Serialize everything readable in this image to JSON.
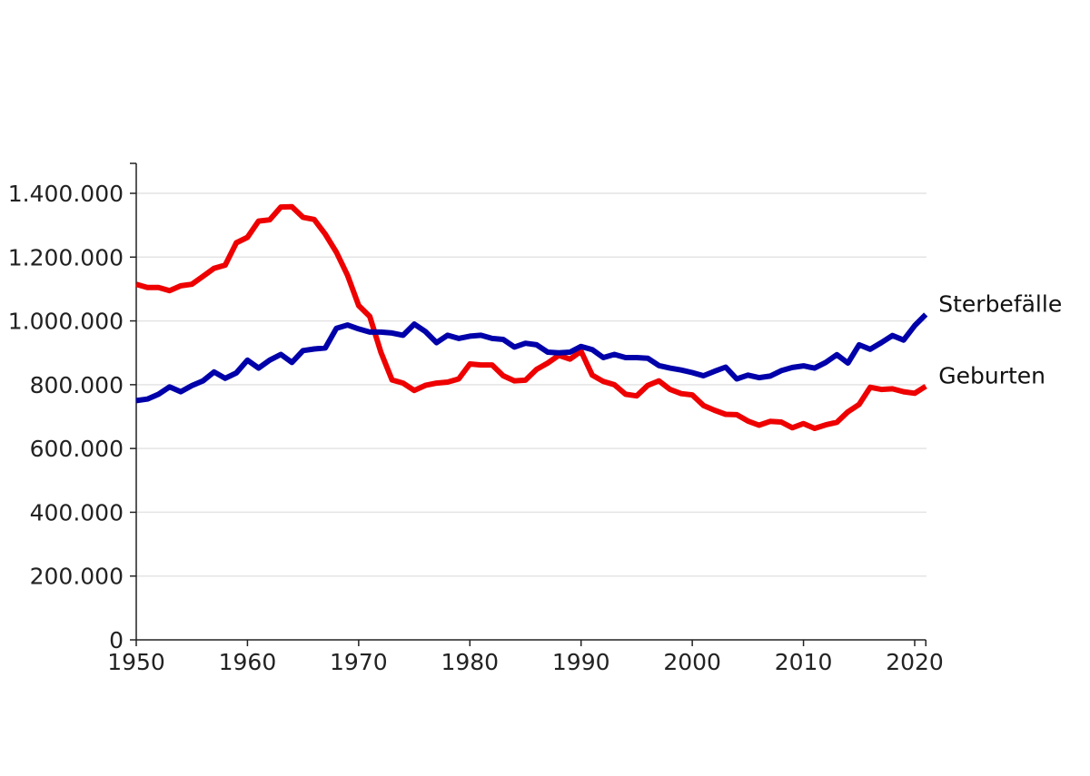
{
  "chart_data": {
    "type": "line",
    "title": "",
    "xlabel": "",
    "ylabel": "",
    "xlim": [
      1950,
      2021
    ],
    "ylim": [
      0,
      1500000
    ],
    "grid": true,
    "x": [
      1950,
      1951,
      1952,
      1953,
      1954,
      1955,
      1956,
      1957,
      1958,
      1959,
      1960,
      1961,
      1962,
      1963,
      1964,
      1965,
      1966,
      1967,
      1968,
      1969,
      1970,
      1971,
      1972,
      1973,
      1974,
      1975,
      1976,
      1977,
      1978,
      1979,
      1980,
      1981,
      1982,
      1983,
      1984,
      1985,
      1986,
      1987,
      1988,
      1989,
      1990,
      1991,
      1992,
      1993,
      1994,
      1995,
      1996,
      1997,
      1998,
      1999,
      2000,
      2001,
      2002,
      2003,
      2004,
      2005,
      2006,
      2007,
      2008,
      2009,
      2010,
      2011,
      2012,
      2013,
      2014,
      2015,
      2016,
      2017,
      2018,
      2019,
      2020,
      2021
    ],
    "y_ticks": [
      {
        "value": 0,
        "label": "0"
      },
      {
        "value": 200000,
        "label": "200.000"
      },
      {
        "value": 400000,
        "label": "400.000"
      },
      {
        "value": 600000,
        "label": "600.000"
      },
      {
        "value": 800000,
        "label": "800.000"
      },
      {
        "value": 1000000,
        "label": "1.000.000"
      },
      {
        "value": 1200000,
        "label": "1.200.000"
      },
      {
        "value": 1400000,
        "label": "1.400.000"
      }
    ],
    "x_ticks": [
      {
        "value": 1950,
        "label": "1950"
      },
      {
        "value": 1960,
        "label": "1960"
      },
      {
        "value": 1970,
        "label": "1970"
      },
      {
        "value": 1980,
        "label": "1980"
      },
      {
        "value": 1990,
        "label": "1990"
      },
      {
        "value": 2000,
        "label": "2000"
      },
      {
        "value": 2010,
        "label": "2010"
      },
      {
        "value": 2020,
        "label": "2020"
      }
    ],
    "series": [
      {
        "name": "Sterbefälle",
        "color": "#0000aa",
        "values": [
          750000,
          755000,
          770000,
          793000,
          778000,
          797000,
          812000,
          840000,
          820000,
          837000,
          877000,
          852000,
          877000,
          895000,
          870000,
          907000,
          912000,
          915000,
          977000,
          987000,
          975000,
          965000,
          965000,
          962000,
          955000,
          990000,
          967000,
          932000,
          955000,
          945000,
          952000,
          955000,
          945000,
          942000,
          918000,
          930000,
          925000,
          902000,
          900000,
          902000,
          920000,
          910000,
          885000,
          895000,
          885000,
          885000,
          883000,
          860000,
          852000,
          846000,
          838000,
          828000,
          842000,
          855000,
          818000,
          830000,
          822000,
          827000,
          844000,
          854000,
          859000,
          852000,
          870000,
          894000,
          868000,
          925000,
          911000,
          932000,
          954000,
          940000,
          985000,
          1020000
        ]
      },
      {
        "name": "Geburten",
        "color": "#ee0000",
        "values": [
          1115000,
          1105000,
          1105000,
          1095000,
          1110000,
          1115000,
          1140000,
          1165000,
          1175000,
          1245000,
          1262000,
          1313000,
          1317000,
          1357000,
          1358000,
          1325000,
          1318000,
          1272000,
          1215000,
          1143000,
          1048000,
          1014000,
          902000,
          815000,
          805000,
          782000,
          798000,
          805000,
          808000,
          818000,
          865000,
          862000,
          862000,
          828000,
          812000,
          814000,
          848000,
          868000,
          892000,
          880000,
          905000,
          830000,
          810000,
          800000,
          770000,
          765000,
          798000,
          812000,
          785000,
          772000,
          768000,
          735000,
          720000,
          707000,
          706000,
          686000,
          673000,
          685000,
          683000,
          665000,
          678000,
          663000,
          674000,
          682000,
          715000,
          738000,
          792000,
          785000,
          787000,
          778000,
          773000,
          795000
        ]
      }
    ]
  }
}
